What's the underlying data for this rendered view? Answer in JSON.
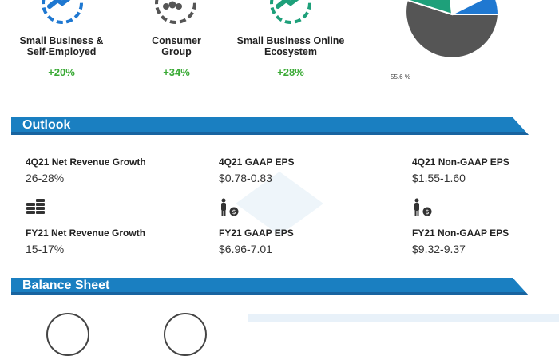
{
  "segments": [
    {
      "name_line1": "Small Business &",
      "name_line2": "Self-Employed",
      "growth": "+20%",
      "icon": "handshake-icon"
    },
    {
      "name_line1": "Consumer",
      "name_line2": "Group",
      "growth": "+34%",
      "icon": "people-group-icon"
    },
    {
      "name_line1": "Small Business Online",
      "name_line2": "Ecosystem",
      "growth": "+28%",
      "icon": "handshake-icon"
    }
  ],
  "pie": {
    "label": "55.6 %",
    "colors": {
      "dark": "#555555",
      "blue": "#1f78d1",
      "green": "#1ea07a"
    }
  },
  "outlook": {
    "title": "Outlook",
    "metrics": [
      {
        "label": "4Q21 Net Revenue Growth",
        "value": "26-28%"
      },
      {
        "label": "4Q21 GAAP EPS",
        "value": "$0.78-0.83"
      },
      {
        "label": "4Q21 Non-GAAP EPS",
        "value": "$1.55-1.60"
      },
      {
        "label": "FY21 Net Revenue Growth",
        "value": "15-17%"
      },
      {
        "label": "FY21 GAAP EPS",
        "value": "$6.96-7.01"
      },
      {
        "label": "FY21 Non-GAAP EPS",
        "value": "$9.32-9.37"
      }
    ]
  },
  "balance_sheet": {
    "title": "Balance Sheet"
  },
  "colors": {
    "banner": "#1a7fc1",
    "growth_green": "#3aaa35"
  }
}
